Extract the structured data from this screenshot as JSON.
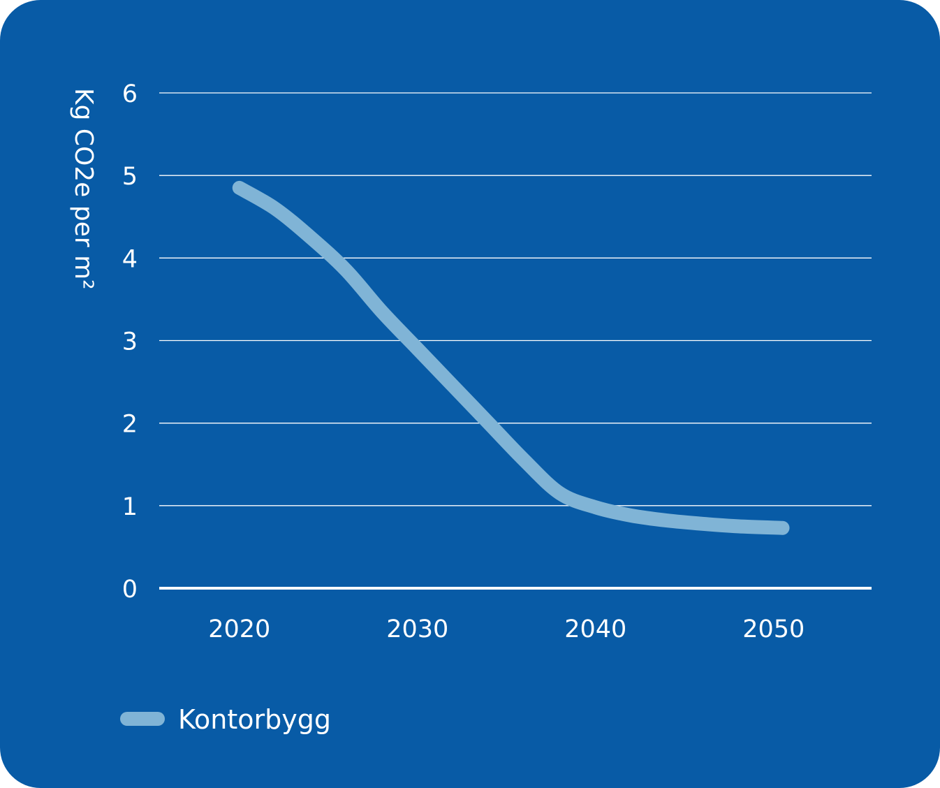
{
  "colors": {
    "background": "#085BA6",
    "gridline": "#FFFFFF",
    "series": "#80B4D6",
    "text": "#FFFFFF"
  },
  "chart_data": {
    "type": "line",
    "title": "",
    "ylabel": "Kg CO2e per m²",
    "xlabel": "",
    "ylim": [
      0,
      6
    ],
    "xlim": [
      2015.5,
      2055.5
    ],
    "yticks": [
      "0",
      "1",
      "2",
      "3",
      "4",
      "5",
      "6"
    ],
    "xticks": [
      "2020",
      "2030",
      "2040",
      "2050"
    ],
    "grid": true,
    "legend_position": "bottom-left",
    "series": [
      {
        "name": "Kontorbygg",
        "color": "#80B4D6",
        "x": [
          2020,
          2022,
          2024,
          2026,
          2028,
          2030,
          2032,
          2034,
          2036,
          2038,
          2040,
          2042,
          2044,
          2046,
          2048,
          2050.5
        ],
        "y": [
          4.85,
          4.6,
          4.25,
          3.85,
          3.35,
          2.9,
          2.45,
          2.0,
          1.55,
          1.15,
          0.98,
          0.88,
          0.82,
          0.78,
          0.75,
          0.73
        ]
      }
    ]
  }
}
